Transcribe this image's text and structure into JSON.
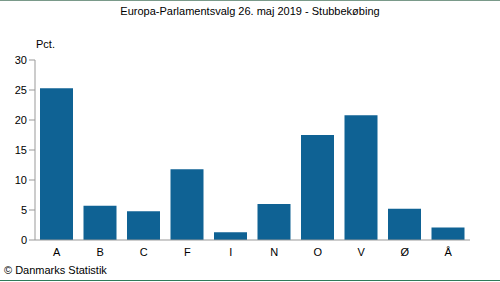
{
  "chart_data": {
    "type": "bar",
    "title": "Europa-Parlamentsvalg 26. maj 2019 - Stubbekøbing",
    "y_label": "Pct.",
    "annotations": [
      "© Danmarks Statistik"
    ],
    "categories": [
      "A",
      "B",
      "C",
      "F",
      "I",
      "N",
      "O",
      "V",
      "Ø",
      "Å"
    ],
    "values": [
      25.3,
      5.7,
      4.8,
      11.8,
      1.3,
      6.0,
      17.5,
      20.8,
      5.2,
      2.1
    ],
    "color": "#0f6294",
    "ylim": [
      0,
      30
    ],
    "yticks": [
      0,
      5,
      10,
      15,
      20,
      25,
      30
    ],
    "grid": false,
    "data_labels": false
  }
}
